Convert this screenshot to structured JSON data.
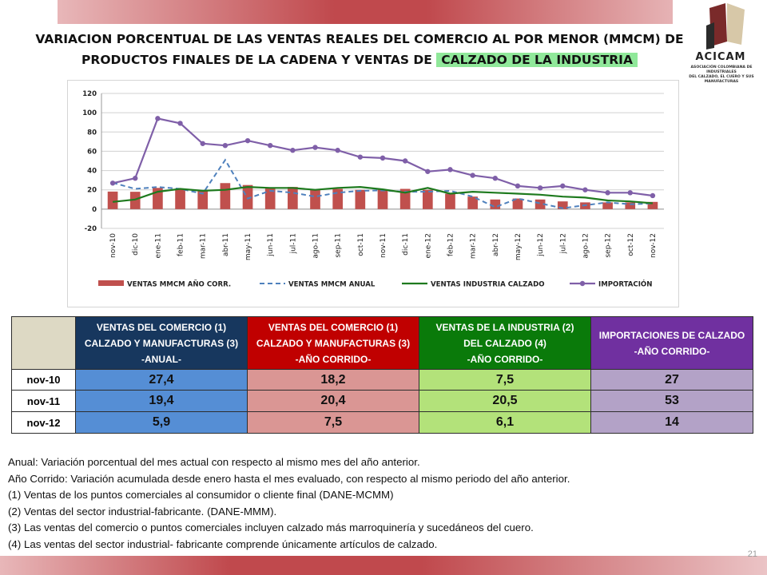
{
  "title": {
    "line1": "VARIACION PORCENTUAL DE LAS VENTAS REALES DEL COMERCIO AL POR MENOR (MMCM) DE",
    "line2_prefix": "PRODUCTOS FINALES DE LA CADENA Y VENTAS DE",
    "line2_highlight": "CALZADO DE LA INDUSTRIA"
  },
  "logo": {
    "name": "ACICAM",
    "sub_line1": "ASOCIACIÓN COLOMBIANA DE INDUSTRIALES",
    "sub_line2": "DEL CALZADO, EL CUERO Y SUS MANUFACTURAS"
  },
  "colors": {
    "bar": "#c0504d",
    "anual_line": "#4f81bd",
    "industria_line": "#1e7a1e",
    "importacion_line": "#7f5fa8",
    "table_hdr_1": "#17375e",
    "table_hdr_2": "#c00000",
    "table_hdr_3": "#0a7a0a",
    "table_hdr_4": "#7030a0",
    "table_col_1": "#558ed5",
    "table_col_2": "#da9694",
    "table_col_3": "#b3e27a",
    "table_col_4": "#b3a2c7"
  },
  "chart_data": {
    "type": "bar",
    "categories": [
      "nov-10",
      "dic-10",
      "ene-11",
      "feb-11",
      "mar-11",
      "abr-11",
      "may-11",
      "jun-11",
      "jul-11",
      "ago-11",
      "sep-11",
      "oct-11",
      "nov-11",
      "dic-11",
      "ene-12",
      "feb-12",
      "mar-12",
      "abr-12",
      "may-12",
      "jun-12",
      "jul-12",
      "ago-12",
      "sep-12",
      "oct-12",
      "nov-12"
    ],
    "ylim": [
      -20,
      120
    ],
    "yticks": [
      -20,
      0,
      20,
      40,
      60,
      80,
      100,
      120
    ],
    "grid": true,
    "legend_position": "bottom",
    "series": [
      {
        "name": "VENTAS MMCM AÑO CORR.",
        "kind": "bar",
        "values": [
          18.2,
          18,
          22,
          21,
          19,
          27,
          25,
          22,
          23,
          20,
          21,
          20,
          20.4,
          21,
          20,
          16,
          13,
          10,
          11,
          10,
          8,
          7,
          7,
          7,
          7.5
        ]
      },
      {
        "name": "VENTAS MMCM ANUAL",
        "kind": "dashed",
        "values": [
          27.4,
          21,
          23,
          21,
          16,
          51,
          11,
          19,
          17,
          13,
          17,
          19,
          19.4,
          18,
          18,
          19,
          13,
          2,
          11,
          6,
          1,
          4,
          7,
          5,
          5.9
        ]
      },
      {
        "name": "VENTAS INDUSTRIA CALZADO",
        "kind": "line",
        "values": [
          7.5,
          10,
          18,
          21,
          19,
          20,
          23,
          22,
          22,
          20,
          22,
          23,
          20.5,
          17,
          22,
          16,
          18,
          17,
          16,
          15,
          13,
          12,
          9,
          8,
          6.1
        ]
      },
      {
        "name": "IMPORTACIÓN",
        "kind": "marker-line",
        "values": [
          27,
          32,
          94,
          89,
          68,
          66,
          71,
          66,
          61,
          64,
          61,
          54,
          53,
          50,
          39,
          41,
          35,
          32,
          24,
          22,
          24,
          20,
          17,
          17,
          14
        ]
      }
    ]
  },
  "table": {
    "headers": [
      [
        "VENTAS DEL COMERCIO (1)",
        "CALZADO Y MANUFACTURAS (3)",
        "-ANUAL-"
      ],
      [
        "VENTAS DEL COMERCIO (1)",
        "CALZADO Y MANUFACTURAS (3)",
        "-AÑO CORRIDO-"
      ],
      [
        "VENTAS DE LA INDUSTRIA (2)",
        "DEL CALZADO (4)",
        "-AÑO CORRIDO-"
      ],
      [
        "IMPORTACIONES DE CALZADO",
        "-AÑO CORRIDO-"
      ]
    ],
    "rows": [
      {
        "label": "nov-10",
        "values": [
          "27,4",
          "18,2",
          "7,5",
          "27"
        ]
      },
      {
        "label": "nov-11",
        "values": [
          "19,4",
          "20,4",
          "20,5",
          "53"
        ]
      },
      {
        "label": "nov-12",
        "values": [
          "5,9",
          "7,5",
          "6,1",
          "14"
        ]
      }
    ]
  },
  "notes": [
    "Anual: Variación porcentual del mes actual con respecto al mismo mes del año anterior.",
    "Año Corrido: Variación acumulada desde enero hasta el mes evaluado, con respecto al mismo periodo del año anterior.",
    "(1) Ventas de los puntos comerciales al consumidor o cliente final (DANE-MCMM)",
    "(2) Ventas del sector industrial-fabricante.  (DANE-MMM).",
    "(3) Las ventas del comercio o puntos comerciales incluyen  calzado más marroquinería  y sucedáneos  del cuero.",
    "(4) Las ventas del sector industrial- fabricante comprende  únicamente  artículos de calzado."
  ],
  "page_number": "21"
}
